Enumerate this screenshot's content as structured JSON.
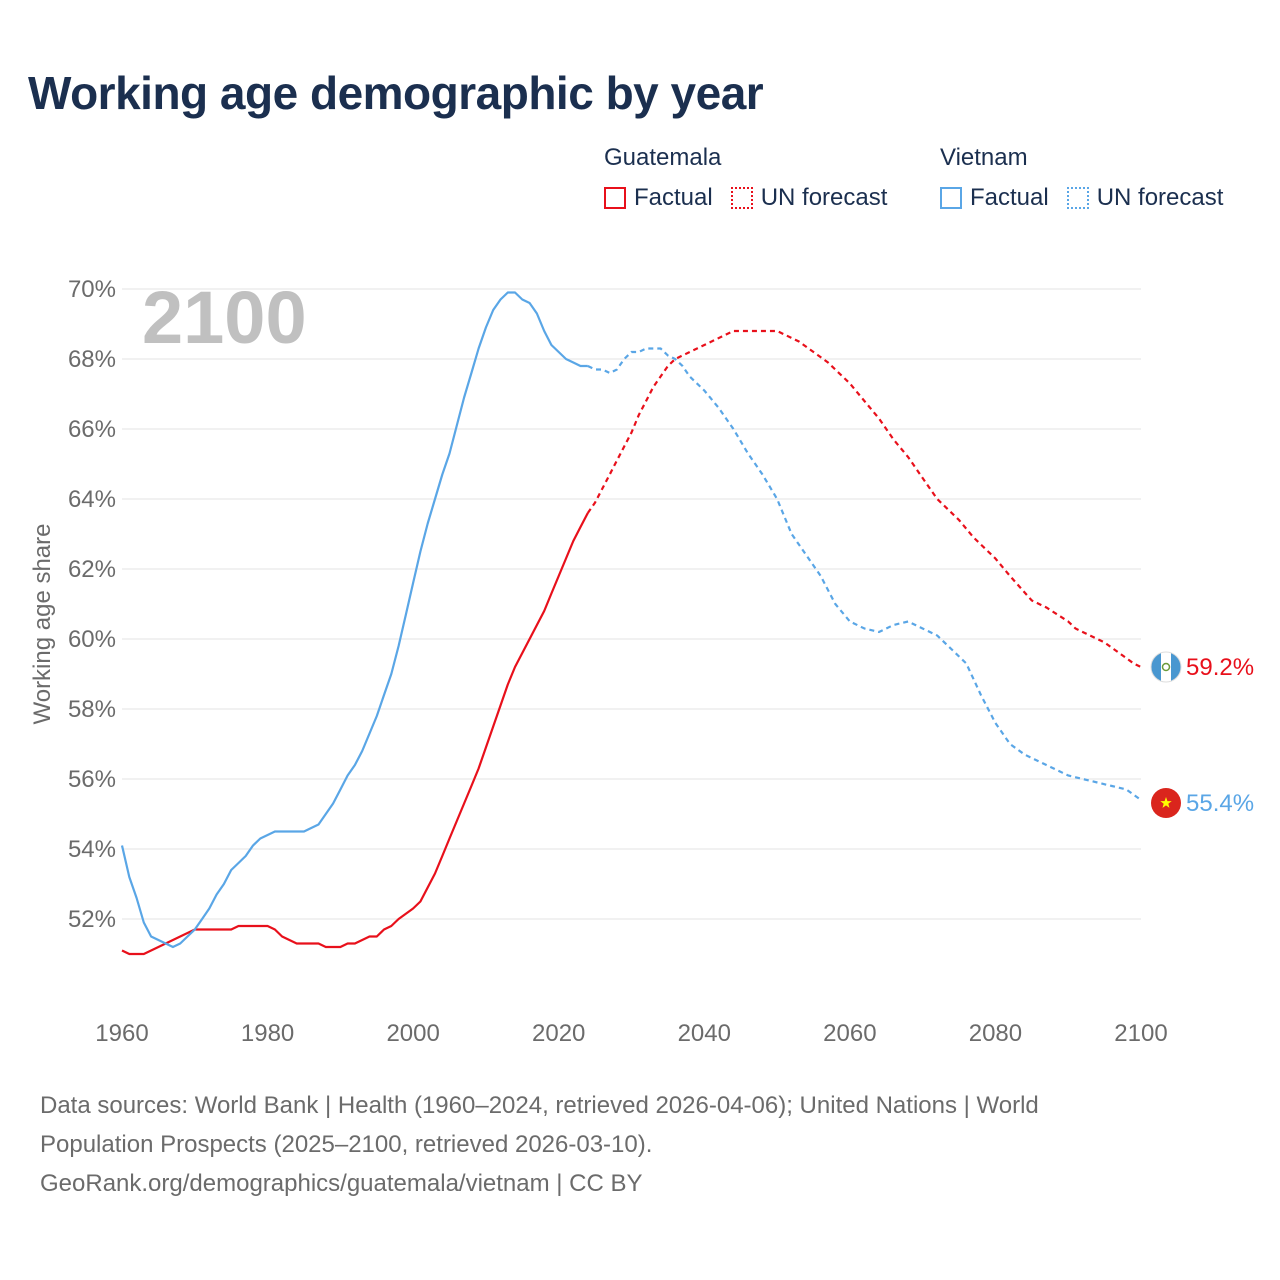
{
  "title": "Working age demographic by year",
  "legend": {
    "groups": [
      {
        "name": "Guatemala",
        "color": "#e8101b",
        "factual_label": "Factual",
        "forecast_label": "UN forecast"
      },
      {
        "name": "Vietnam",
        "color": "#5aa6e6",
        "factual_label": "Factual",
        "forecast_label": "UN forecast"
      }
    ]
  },
  "footer": {
    "line1": "Data sources: World Bank | Health (1960–2024, retrieved 2026-04-06); United Nations | World",
    "line2": "Population Prospects (2025–2100, retrieved 2026-03-10).",
    "line3": "GeoRank.org/demographics/guatemala/vietnam | CC BY"
  },
  "chart_data": {
    "type": "line",
    "title": "Working age demographic by year",
    "year_label": "2100",
    "xlabel": "",
    "ylabel": "Working age share",
    "xlim": [
      1960,
      2100
    ],
    "ylim": [
      50,
      70
    ],
    "x_ticks": [
      "1960",
      "1980",
      "2000",
      "2020",
      "2040",
      "2060",
      "2080",
      "2100"
    ],
    "y_ticks": [
      "52%",
      "54%",
      "56%",
      "58%",
      "60%",
      "62%",
      "64%",
      "66%",
      "68%",
      "70%"
    ],
    "grid": true,
    "series": [
      {
        "name": "Guatemala",
        "color": "#e8101b",
        "end_label": "59.2%",
        "flag": "guatemala-flag-icon",
        "factual": [
          [
            1960,
            51.1
          ],
          [
            1961,
            51.0
          ],
          [
            1963,
            51.0
          ],
          [
            1965,
            51.2
          ],
          [
            1968,
            51.5
          ],
          [
            1970,
            51.7
          ],
          [
            1975,
            51.7
          ],
          [
            1976,
            51.8
          ],
          [
            1980,
            51.8
          ],
          [
            1981,
            51.7
          ],
          [
            1982,
            51.5
          ],
          [
            1984,
            51.3
          ],
          [
            1987,
            51.3
          ],
          [
            1988,
            51.2
          ],
          [
            1990,
            51.2
          ],
          [
            1991,
            51.3
          ],
          [
            1992,
            51.3
          ],
          [
            1994,
            51.5
          ],
          [
            1995,
            51.5
          ],
          [
            1996,
            51.7
          ],
          [
            1997,
            51.8
          ],
          [
            1998,
            52.0
          ],
          [
            2000,
            52.3
          ],
          [
            2001,
            52.5
          ],
          [
            2002,
            52.9
          ],
          [
            2003,
            53.3
          ],
          [
            2004,
            53.8
          ],
          [
            2005,
            54.3
          ],
          [
            2006,
            54.8
          ],
          [
            2007,
            55.3
          ],
          [
            2008,
            55.8
          ],
          [
            2009,
            56.3
          ],
          [
            2010,
            56.9
          ],
          [
            2011,
            57.5
          ],
          [
            2012,
            58.1
          ],
          [
            2013,
            58.7
          ],
          [
            2014,
            59.2
          ],
          [
            2015,
            59.6
          ],
          [
            2016,
            60.0
          ],
          [
            2017,
            60.4
          ],
          [
            2018,
            60.8
          ],
          [
            2019,
            61.3
          ],
          [
            2020,
            61.8
          ],
          [
            2021,
            62.3
          ],
          [
            2022,
            62.8
          ],
          [
            2023,
            63.2
          ],
          [
            2024,
            63.6
          ]
        ],
        "forecast": [
          [
            2024,
            63.6
          ],
          [
            2025,
            63.9
          ],
          [
            2026,
            64.3
          ],
          [
            2027,
            64.7
          ],
          [
            2028,
            65.1
          ],
          [
            2029,
            65.5
          ],
          [
            2030,
            65.9
          ],
          [
            2031,
            66.4
          ],
          [
            2032,
            66.8
          ],
          [
            2033,
            67.2
          ],
          [
            2034,
            67.5
          ],
          [
            2035,
            67.8
          ],
          [
            2036,
            68.0
          ],
          [
            2037,
            68.1
          ],
          [
            2040,
            68.4
          ],
          [
            2043,
            68.7
          ],
          [
            2044,
            68.8
          ],
          [
            2050,
            68.8
          ],
          [
            2051,
            68.7
          ],
          [
            2053,
            68.5
          ],
          [
            2055,
            68.2
          ],
          [
            2057,
            67.9
          ],
          [
            2060,
            67.3
          ],
          [
            2062,
            66.8
          ],
          [
            2064,
            66.3
          ],
          [
            2066,
            65.7
          ],
          [
            2068,
            65.2
          ],
          [
            2070,
            64.6
          ],
          [
            2072,
            64.0
          ],
          [
            2075,
            63.4
          ],
          [
            2077,
            62.9
          ],
          [
            2080,
            62.3
          ],
          [
            2082,
            61.8
          ],
          [
            2085,
            61.1
          ],
          [
            2087,
            60.9
          ],
          [
            2090,
            60.5
          ],
          [
            2091,
            60.3
          ],
          [
            2093,
            60.1
          ],
          [
            2095,
            59.9
          ],
          [
            2097,
            59.6
          ],
          [
            2099,
            59.3
          ],
          [
            2100,
            59.2
          ]
        ]
      },
      {
        "name": "Vietnam",
        "color": "#5aa6e6",
        "end_label": "55.4%",
        "flag": "vietnam-flag-icon",
        "factual": [
          [
            1960,
            54.1
          ],
          [
            1961,
            53.2
          ],
          [
            1962,
            52.6
          ],
          [
            1963,
            51.9
          ],
          [
            1964,
            51.5
          ],
          [
            1966,
            51.3
          ],
          [
            1967,
            51.2
          ],
          [
            1968,
            51.3
          ],
          [
            1969,
            51.5
          ],
          [
            1970,
            51.7
          ],
          [
            1971,
            52.0
          ],
          [
            1972,
            52.3
          ],
          [
            1973,
            52.7
          ],
          [
            1974,
            53.0
          ],
          [
            1975,
            53.4
          ],
          [
            1976,
            53.6
          ],
          [
            1977,
            53.8
          ],
          [
            1978,
            54.1
          ],
          [
            1979,
            54.3
          ],
          [
            1980,
            54.4
          ],
          [
            1981,
            54.5
          ],
          [
            1982,
            54.5
          ],
          [
            1985,
            54.5
          ],
          [
            1986,
            54.6
          ],
          [
            1987,
            54.7
          ],
          [
            1988,
            55.0
          ],
          [
            1989,
            55.3
          ],
          [
            1990,
            55.7
          ],
          [
            1991,
            56.1
          ],
          [
            1992,
            56.4
          ],
          [
            1993,
            56.8
          ],
          [
            1994,
            57.3
          ],
          [
            1995,
            57.8
          ],
          [
            1996,
            58.4
          ],
          [
            1997,
            59.0
          ],
          [
            1998,
            59.8
          ],
          [
            1999,
            60.7
          ],
          [
            2000,
            61.6
          ],
          [
            2001,
            62.5
          ],
          [
            2002,
            63.3
          ],
          [
            2003,
            64.0
          ],
          [
            2004,
            64.7
          ],
          [
            2005,
            65.3
          ],
          [
            2006,
            66.1
          ],
          [
            2007,
            66.9
          ],
          [
            2008,
            67.6
          ],
          [
            2009,
            68.3
          ],
          [
            2010,
            68.9
          ],
          [
            2011,
            69.4
          ],
          [
            2012,
            69.7
          ],
          [
            2013,
            69.9
          ],
          [
            2014,
            69.9
          ],
          [
            2015,
            69.7
          ],
          [
            2016,
            69.6
          ],
          [
            2017,
            69.3
          ],
          [
            2018,
            68.8
          ],
          [
            2019,
            68.4
          ],
          [
            2020,
            68.2
          ],
          [
            2021,
            68.0
          ],
          [
            2022,
            67.9
          ],
          [
            2023,
            67.8
          ],
          [
            2024,
            67.8
          ]
        ],
        "forecast": [
          [
            2024,
            67.8
          ],
          [
            2025,
            67.7
          ],
          [
            2026,
            67.7
          ],
          [
            2027,
            67.6
          ],
          [
            2028,
            67.7
          ],
          [
            2029,
            68.0
          ],
          [
            2030,
            68.2
          ],
          [
            2031,
            68.2
          ],
          [
            2032,
            68.3
          ],
          [
            2033,
            68.3
          ],
          [
            2034,
            68.3
          ],
          [
            2035,
            68.1
          ],
          [
            2036,
            68.0
          ],
          [
            2037,
            67.8
          ],
          [
            2038,
            67.5
          ],
          [
            2040,
            67.1
          ],
          [
            2042,
            66.6
          ],
          [
            2044,
            66.0
          ],
          [
            2046,
            65.3
          ],
          [
            2048,
            64.7
          ],
          [
            2050,
            64.0
          ],
          [
            2052,
            63.0
          ],
          [
            2054,
            62.4
          ],
          [
            2056,
            61.8
          ],
          [
            2058,
            61.0
          ],
          [
            2060,
            60.5
          ],
          [
            2062,
            60.3
          ],
          [
            2064,
            60.2
          ],
          [
            2066,
            60.4
          ],
          [
            2068,
            60.5
          ],
          [
            2070,
            60.3
          ],
          [
            2072,
            60.1
          ],
          [
            2074,
            59.7
          ],
          [
            2076,
            59.3
          ],
          [
            2078,
            58.4
          ],
          [
            2080,
            57.6
          ],
          [
            2082,
            57.0
          ],
          [
            2084,
            56.7
          ],
          [
            2086,
            56.5
          ],
          [
            2088,
            56.3
          ],
          [
            2090,
            56.1
          ],
          [
            2092,
            56.0
          ],
          [
            2094,
            55.9
          ],
          [
            2096,
            55.8
          ],
          [
            2098,
            55.7
          ],
          [
            2100,
            55.4
          ]
        ]
      }
    ]
  }
}
